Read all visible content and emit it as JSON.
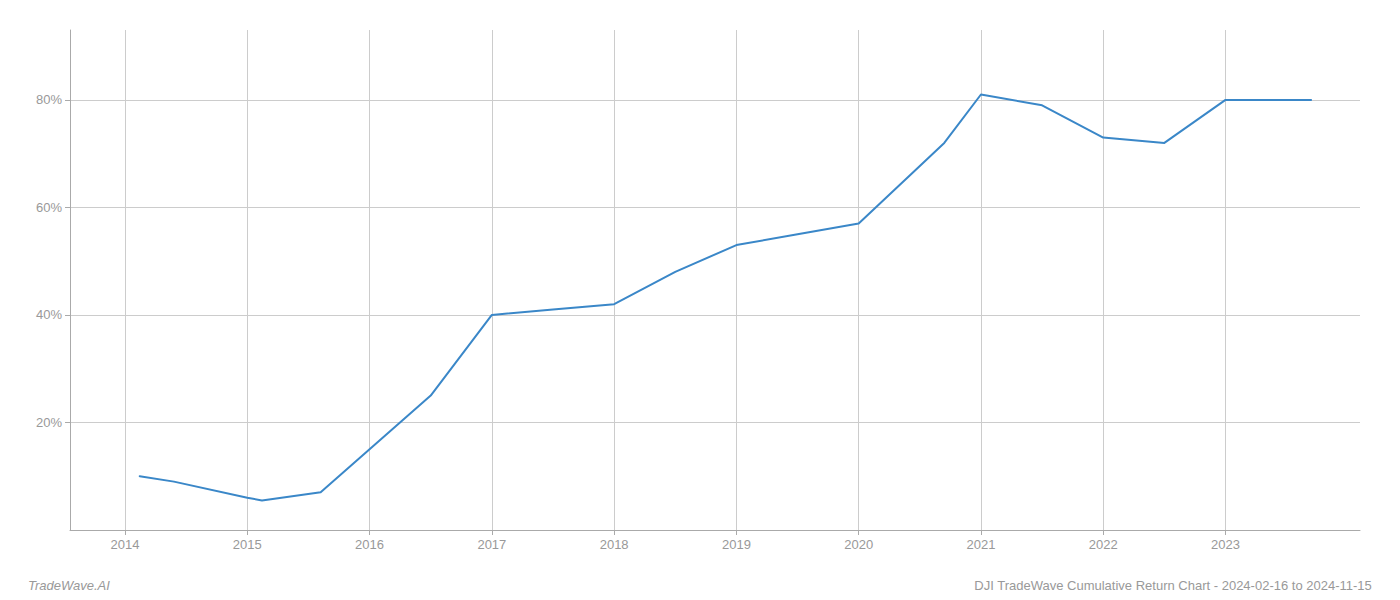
{
  "chart_data": {
    "type": "line",
    "x": [
      2014.12,
      2014.4,
      2015.0,
      2015.12,
      2015.6,
      2016.5,
      2017.0,
      2017.5,
      2018.0,
      2018.5,
      2019.0,
      2019.5,
      2020.0,
      2020.7,
      2021.0,
      2021.5,
      2022.0,
      2022.5,
      2023.0,
      2023.7
    ],
    "values": [
      10,
      9,
      6,
      5.5,
      7,
      25,
      40,
      41,
      42,
      48,
      53,
      55,
      57,
      72,
      81,
      79,
      73,
      72,
      80,
      80
    ],
    "color": "#3a87c8",
    "xlim": [
      2013.55,
      2024.1
    ],
    "xticks": [
      2014,
      2015,
      2016,
      2017,
      2018,
      2019,
      2020,
      2021,
      2022,
      2023
    ],
    "ylim": [
      0,
      93
    ],
    "yticks": [
      {
        "value": 20,
        "label": "20%"
      },
      {
        "value": 40,
        "label": "40%"
      },
      {
        "value": 60,
        "label": "60%"
      },
      {
        "value": 80,
        "label": "80%"
      }
    ],
    "grid": true,
    "annotations": [
      "TradeWave.AI",
      "DJI TradeWave Cumulative Return Chart - 2024-02-16 to 2024-11-15"
    ]
  }
}
